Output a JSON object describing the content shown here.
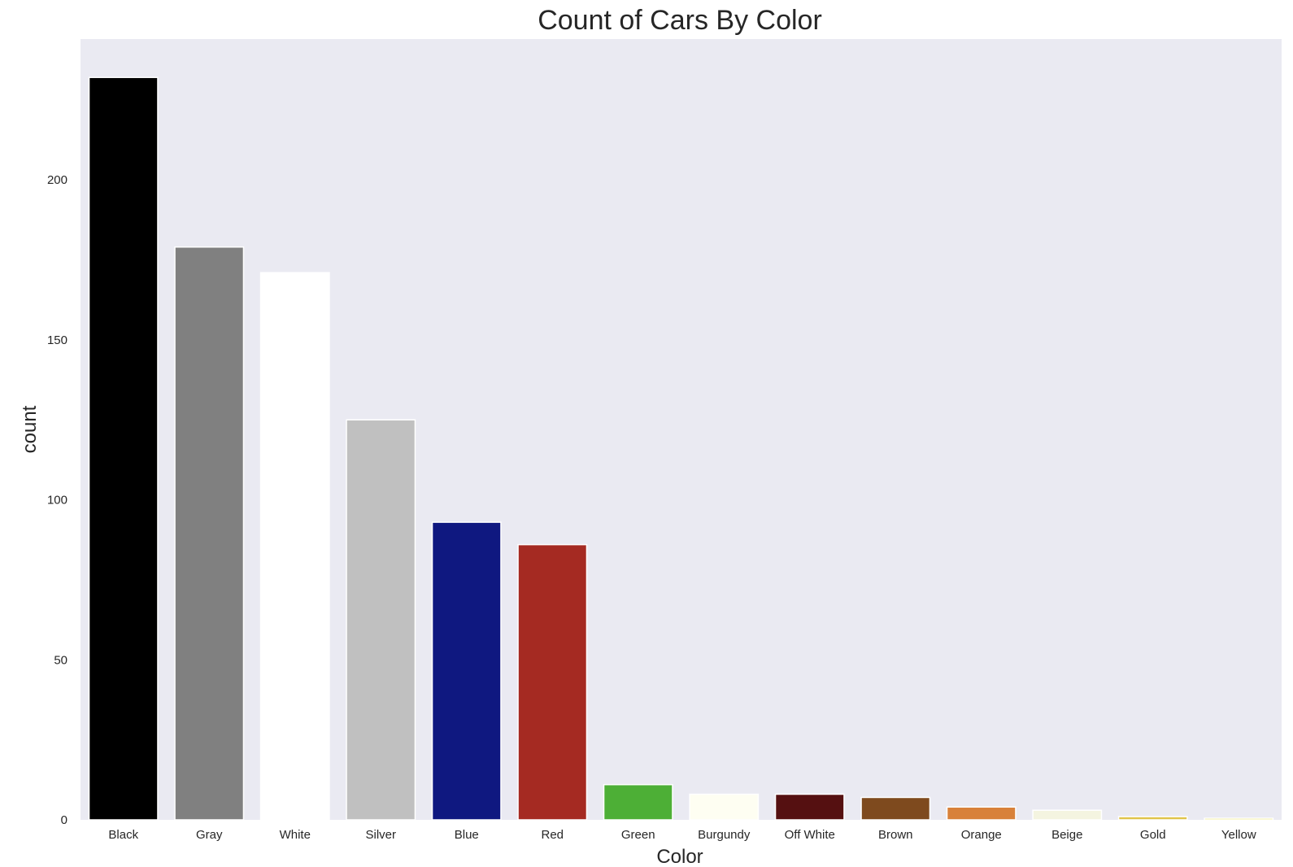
{
  "chart_data": {
    "type": "bar",
    "title": "Count of Cars By Color",
    "xlabel": "Color",
    "ylabel": "count",
    "categories": [
      "Black",
      "Gray",
      "White",
      "Silver",
      "Blue",
      "Red",
      "Green",
      "Burgundy",
      "Off White",
      "Brown",
      "Orange",
      "Beige",
      "Gold",
      "Yellow"
    ],
    "values": [
      232,
      179,
      171,
      125,
      93,
      86,
      11,
      8,
      8,
      7,
      4,
      3,
      1,
      0.5
    ],
    "colors": [
      "#000000",
      "#808080",
      "#ffffff",
      "#c0c0c0",
      "#0f1880",
      "#a52a22",
      "#4daf36",
      "#fefef2",
      "#551011",
      "#7e4a1e",
      "#d8813a",
      "#f4f4e0",
      "#e0c44a",
      "#ebe24a"
    ],
    "yticks": [
      0,
      50,
      100,
      150,
      200
    ],
    "ylim": [
      0,
      244
    ],
    "grid": false,
    "legend": "none",
    "plot_background": "#eaeaf2",
    "bar_edge_color": "#ffffff"
  }
}
